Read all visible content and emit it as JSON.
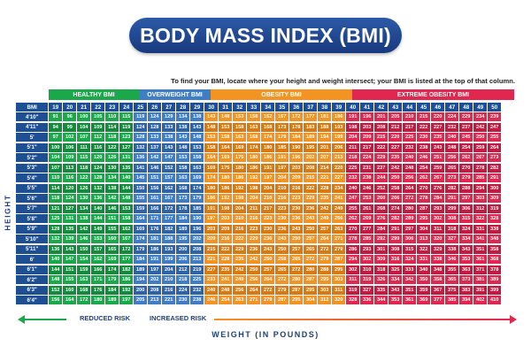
{
  "title": "BODY MASS INDEX (BMI)",
  "instruction": "To find your BMI, locate where your height and weight intersect; your BMI is listed at the top of that column.",
  "categories": {
    "healthy": "HEALTHY BMI",
    "overweight": "OVERWEIGHT BMI",
    "obesity": "OBESITY BMI",
    "extreme": "EXTREME OBESITY BMI"
  },
  "axis": {
    "bmi_label": "BMI",
    "height_label": "HEIGHT",
    "weight_label": "WEIGHT (IN POUNDS)"
  },
  "risk": {
    "reduced": "REDUCED RISK",
    "increased": "INCREASED RISK"
  },
  "colors": {
    "healthy": [
      "#1aa84b",
      "#138a3c"
    ],
    "overweight": [
      "#3f7dc6",
      "#2e63a6"
    ],
    "obesity": [
      "#f39321",
      "#d97a10"
    ],
    "extreme": [
      "#e02750",
      "#c41a42"
    ],
    "header": "#1f4f93"
  },
  "bmi_values": [
    19,
    20,
    21,
    22,
    23,
    24,
    25,
    26,
    27,
    28,
    29,
    30,
    31,
    32,
    33,
    34,
    35,
    36,
    37,
    38,
    39,
    40,
    41,
    42,
    43,
    44,
    45,
    46,
    47,
    48,
    49,
    50
  ],
  "heights": [
    "4'10\"",
    "4'11\"",
    "5'",
    "5'1\"",
    "5'2\"",
    "5'3\"",
    "5'4\"",
    "5'5\"",
    "5'6\"",
    "5'7\"",
    "5'8\"",
    "5'9\"",
    "5'10\"",
    "5'11\"",
    "6'",
    "6'1\"",
    "6'2\"",
    "6'3\"",
    "6'4\""
  ],
  "weights": [
    [
      91,
      96,
      100,
      105,
      110,
      115,
      119,
      124,
      129,
      134,
      138,
      143,
      148,
      153,
      158,
      162,
      167,
      172,
      177,
      181,
      186,
      191,
      196,
      201,
      205,
      210,
      215,
      220,
      224,
      229,
      234,
      239
    ],
    [
      94,
      99,
      104,
      109,
      114,
      119,
      124,
      128,
      133,
      138,
      143,
      148,
      153,
      158,
      163,
      168,
      173,
      178,
      183,
      188,
      193,
      198,
      203,
      208,
      212,
      217,
      222,
      227,
      232,
      237,
      242,
      247
    ],
    [
      97,
      102,
      107,
      112,
      118,
      123,
      128,
      133,
      138,
      143,
      148,
      153,
      158,
      163,
      168,
      174,
      179,
      184,
      189,
      194,
      199,
      204,
      209,
      215,
      220,
      225,
      230,
      235,
      240,
      245,
      250,
      255
    ],
    [
      100,
      106,
      111,
      116,
      122,
      127,
      132,
      137,
      143,
      148,
      153,
      158,
      164,
      169,
      174,
      180,
      185,
      190,
      195,
      201,
      206,
      211,
      217,
      222,
      227,
      232,
      238,
      243,
      248,
      254,
      259,
      264
    ],
    [
      104,
      109,
      115,
      120,
      126,
      131,
      136,
      142,
      147,
      153,
      158,
      164,
      169,
      175,
      180,
      186,
      191,
      196,
      202,
      207,
      213,
      218,
      224,
      229,
      235,
      240,
      246,
      251,
      256,
      262,
      267,
      273
    ],
    [
      107,
      113,
      118,
      124,
      130,
      135,
      141,
      146,
      152,
      158,
      163,
      169,
      175,
      180,
      186,
      191,
      197,
      203,
      208,
      214,
      220,
      225,
      231,
      237,
      242,
      248,
      254,
      259,
      265,
      270,
      278,
      282
    ],
    [
      110,
      116,
      122,
      128,
      134,
      140,
      145,
      151,
      157,
      163,
      169,
      174,
      180,
      186,
      192,
      197,
      204,
      209,
      215,
      221,
      227,
      232,
      238,
      244,
      250,
      256,
      262,
      267,
      273,
      279,
      285,
      291
    ],
    [
      114,
      120,
      126,
      132,
      138,
      144,
      150,
      156,
      162,
      168,
      174,
      180,
      186,
      192,
      198,
      204,
      210,
      216,
      222,
      228,
      234,
      240,
      246,
      252,
      258,
      264,
      270,
      276,
      282,
      288,
      294,
      300
    ],
    [
      118,
      124,
      130,
      136,
      142,
      148,
      155,
      161,
      167,
      173,
      179,
      186,
      192,
      198,
      204,
      210,
      216,
      223,
      229,
      235,
      241,
      247,
      253,
      260,
      266,
      272,
      278,
      284,
      291,
      297,
      303,
      309
    ],
    [
      121,
      127,
      134,
      140,
      146,
      153,
      159,
      166,
      172,
      178,
      185,
      191,
      198,
      204,
      211,
      217,
      223,
      230,
      236,
      242,
      249,
      255,
      261,
      268,
      274,
      280,
      287,
      293,
      299,
      306,
      312,
      319
    ],
    [
      125,
      131,
      138,
      144,
      151,
      158,
      164,
      171,
      177,
      184,
      190,
      197,
      203,
      210,
      216,
      223,
      230,
      236,
      243,
      249,
      256,
      262,
      269,
      276,
      282,
      289,
      295,
      302,
      308,
      315,
      322,
      328
    ],
    [
      128,
      135,
      142,
      149,
      155,
      162,
      169,
      176,
      182,
      189,
      196,
      203,
      209,
      216,
      223,
      230,
      236,
      243,
      250,
      257,
      263,
      270,
      277,
      284,
      291,
      297,
      304,
      311,
      318,
      324,
      331,
      338
    ],
    [
      132,
      139,
      146,
      153,
      160,
      167,
      174,
      181,
      188,
      195,
      202,
      209,
      216,
      222,
      229,
      236,
      243,
      250,
      257,
      264,
      271,
      278,
      285,
      292,
      299,
      306,
      313,
      320,
      327,
      334,
      341,
      348
    ],
    [
      136,
      143,
      150,
      157,
      165,
      172,
      179,
      186,
      193,
      200,
      208,
      215,
      222,
      229,
      236,
      243,
      250,
      257,
      265,
      272,
      279,
      286,
      293,
      301,
      308,
      315,
      322,
      329,
      338,
      343,
      351,
      358
    ],
    [
      140,
      147,
      154,
      162,
      169,
      177,
      184,
      191,
      199,
      206,
      213,
      221,
      228,
      235,
      242,
      250,
      258,
      265,
      272,
      279,
      287,
      294,
      302,
      309,
      316,
      324,
      331,
      338,
      346,
      353,
      361,
      368
    ],
    [
      144,
      151,
      159,
      166,
      174,
      182,
      189,
      197,
      204,
      212,
      219,
      227,
      235,
      242,
      250,
      257,
      265,
      272,
      280,
      288,
      295,
      302,
      310,
      318,
      325,
      333,
      340,
      348,
      355,
      363,
      371,
      378
    ],
    [
      148,
      155,
      163,
      171,
      179,
      186,
      194,
      202,
      210,
      218,
      225,
      233,
      241,
      249,
      256,
      264,
      272,
      280,
      287,
      295,
      303,
      311,
      319,
      326,
      334,
      342,
      350,
      358,
      365,
      373,
      381,
      389
    ],
    [
      152,
      160,
      168,
      176,
      184,
      192,
      200,
      208,
      216,
      224,
      232,
      240,
      248,
      256,
      264,
      272,
      279,
      287,
      295,
      303,
      311,
      319,
      327,
      335,
      343,
      351,
      359,
      367,
      375,
      383,
      391,
      399
    ],
    [
      156,
      164,
      172,
      180,
      189,
      197,
      205,
      213,
      221,
      230,
      238,
      246,
      254,
      263,
      271,
      279,
      287,
      295,
      304,
      312,
      320,
      328,
      336,
      344,
      353,
      361,
      369,
      377,
      385,
      394,
      402,
      410
    ]
  ]
}
